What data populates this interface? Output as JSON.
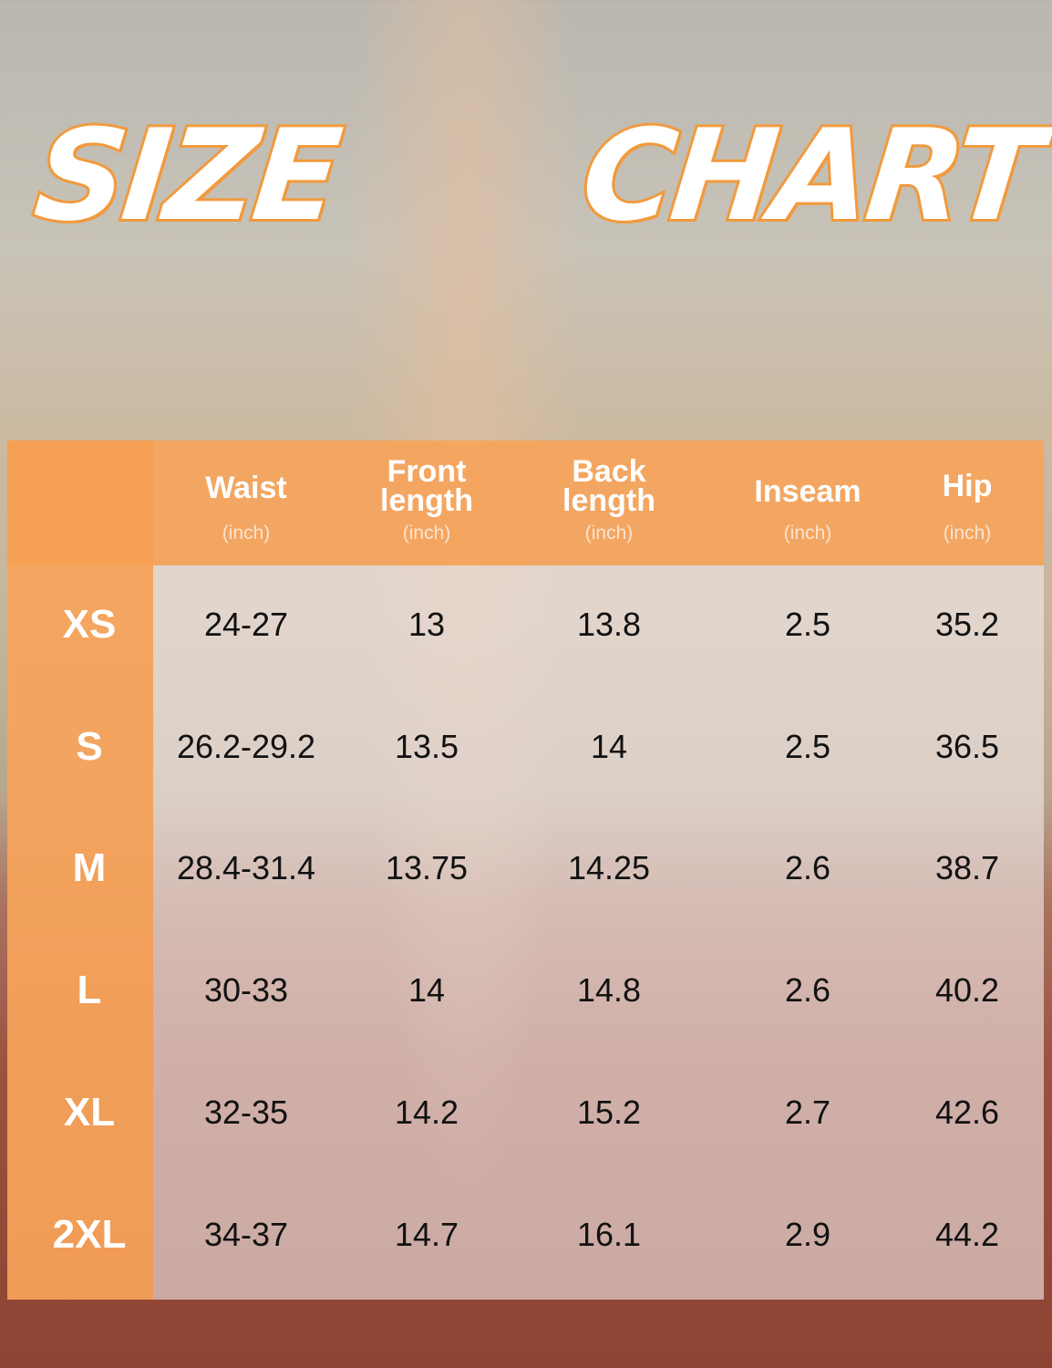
{
  "title": {
    "word1": "SIZE",
    "word2": "CHART"
  },
  "colors": {
    "accent_orange": "#f5a055",
    "title_outline": "#f19a3e"
  },
  "table": {
    "columns": [
      {
        "name": "Waist",
        "unit": "(inch)"
      },
      {
        "name": "Front length",
        "unit": "(inch)"
      },
      {
        "name": "Back length",
        "unit": "(inch)"
      },
      {
        "name": "Inseam",
        "unit": "(inch)"
      },
      {
        "name": "Hip",
        "unit": "(inch)"
      }
    ],
    "rows": [
      {
        "size": "XS",
        "values": [
          "24-27",
          "13",
          "13.8",
          "2.5",
          "35.2"
        ]
      },
      {
        "size": "S",
        "values": [
          "26.2-29.2",
          "13.5",
          "14",
          "2.5",
          "36.5"
        ]
      },
      {
        "size": "M",
        "values": [
          "28.4-31.4",
          "13.75",
          "14.25",
          "2.6",
          "38.7"
        ]
      },
      {
        "size": "L",
        "values": [
          "30-33",
          "14",
          "14.8",
          "2.6",
          "40.2"
        ]
      },
      {
        "size": "XL",
        "values": [
          "32-35",
          "14.2",
          "15.2",
          "2.7",
          "42.6"
        ]
      },
      {
        "size": "2XL",
        "values": [
          "34-37",
          "14.7",
          "16.1",
          "2.9",
          "44.2"
        ]
      }
    ]
  }
}
